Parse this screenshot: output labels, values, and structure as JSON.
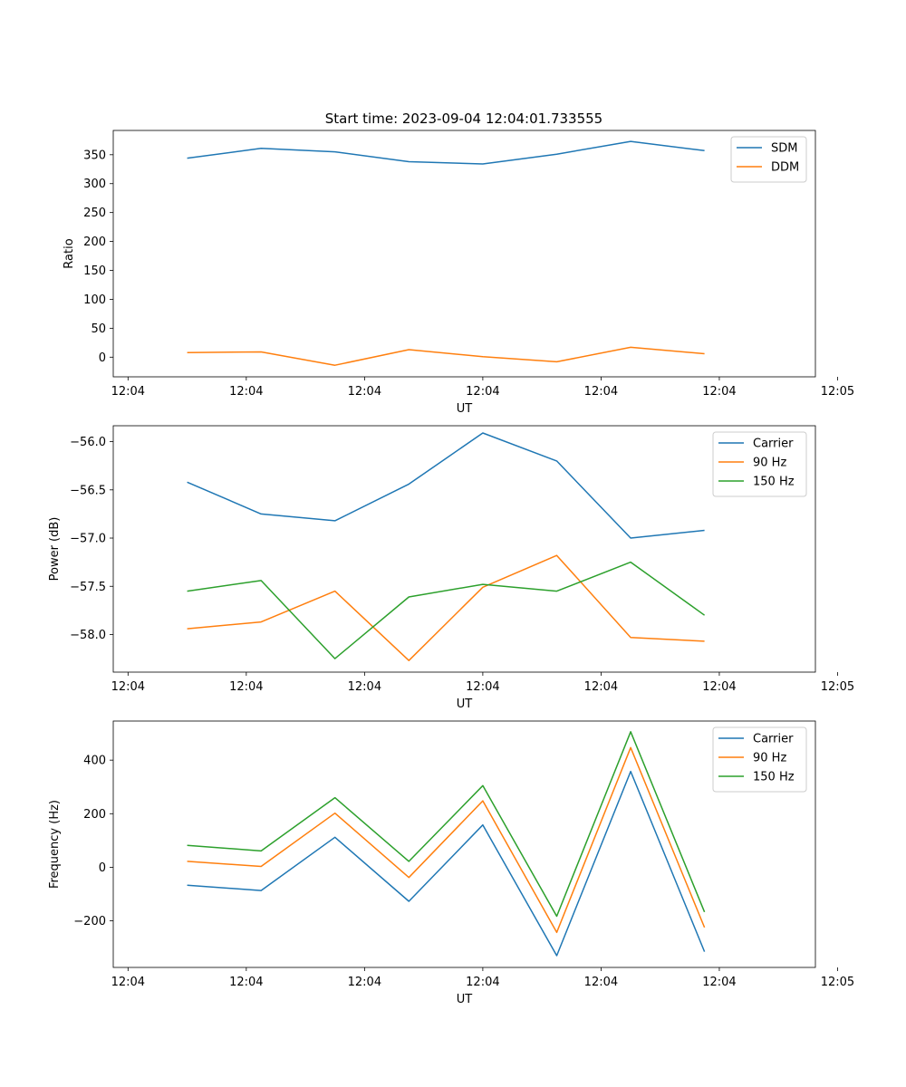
{
  "figure_title": "Start time: 2023-09-04 12:04:01.733555",
  "colors": {
    "blue": "#1f77b4",
    "orange": "#ff7f0e",
    "green": "#2ca02c"
  },
  "chart_data": [
    {
      "type": "line",
      "title": "Start time: 2023-09-04 12:04:01.733555",
      "xlabel": "UT",
      "ylabel": "Ratio",
      "xlim": [
        0,
        9.5
      ],
      "xticks": [
        0.2,
        1.8,
        3.4,
        5.0,
        6.6,
        8.2,
        9.8
      ],
      "xtick_labels": [
        "12:04",
        "12:04",
        "12:04",
        "12:04",
        "12:04",
        "12:04",
        "12:05"
      ],
      "ylim": [
        -34,
        392
      ],
      "yticks": [
        0,
        50,
        100,
        150,
        200,
        250,
        300,
        350
      ],
      "ytick_labels": [
        "0",
        "50",
        "100",
        "150",
        "200",
        "250",
        "300",
        "350"
      ],
      "legend": "top-right",
      "x": [
        1,
        2,
        3,
        4,
        5,
        6,
        7,
        8
      ],
      "series": [
        {
          "name": "SDM",
          "color": "#1f77b4",
          "values": [
            344,
            361,
            355,
            338,
            334,
            351,
            373,
            357
          ]
        },
        {
          "name": "DDM",
          "color": "#ff7f0e",
          "values": [
            8,
            9,
            -14,
            13,
            1,
            -8,
            17,
            6
          ]
        }
      ]
    },
    {
      "type": "line",
      "title": "",
      "xlabel": "UT",
      "ylabel": "Power (dB)",
      "xlim": [
        0,
        9.5
      ],
      "xticks": [
        0.2,
        1.8,
        3.4,
        5.0,
        6.6,
        8.2,
        9.8
      ],
      "xtick_labels": [
        "12:04",
        "12:04",
        "12:04",
        "12:04",
        "12:04",
        "12:04",
        "12:05"
      ],
      "ylim": [
        -58.39,
        -55.835
      ],
      "yticks": [
        -58.0,
        -57.5,
        -57.0,
        -56.5,
        -56.0
      ],
      "ytick_labels": [
        "−58.0",
        "−57.5",
        "−57.0",
        "−56.5",
        "−56.0"
      ],
      "legend": "top-right",
      "x": [
        1,
        2,
        3,
        4,
        5,
        6,
        7,
        8
      ],
      "series": [
        {
          "name": "Carrier",
          "color": "#1f77b4",
          "values": [
            -56.42,
            -56.75,
            -56.82,
            -56.44,
            -55.91,
            -56.2,
            -57.0,
            -56.92
          ]
        },
        {
          "name": "90 Hz",
          "color": "#ff7f0e",
          "values": [
            -57.94,
            -57.87,
            -57.55,
            -58.27,
            -57.51,
            -57.18,
            -58.03,
            -58.07
          ]
        },
        {
          "name": "150 Hz",
          "color": "#2ca02c",
          "values": [
            -57.55,
            -57.44,
            -58.25,
            -57.61,
            -57.48,
            -57.55,
            -57.25,
            -57.8
          ]
        }
      ]
    },
    {
      "type": "line",
      "title": "",
      "xlabel": "UT",
      "ylabel": "Frequency (Hz)",
      "xlim": [
        0,
        9.5
      ],
      "xticks": [
        0.2,
        1.8,
        3.4,
        5.0,
        6.6,
        8.2,
        9.8
      ],
      "xtick_labels": [
        "12:04",
        "12:04",
        "12:04",
        "12:04",
        "12:04",
        "12:04",
        "12:05"
      ],
      "ylim": [
        -374,
        546
      ],
      "yticks": [
        -200,
        0,
        200,
        400
      ],
      "ytick_labels": [
        "−200",
        "0",
        "200",
        "400"
      ],
      "legend": "top-right",
      "x": [
        1,
        2,
        3,
        4,
        5,
        6,
        7,
        8
      ],
      "series": [
        {
          "name": "Carrier",
          "color": "#1f77b4",
          "values": [
            -67,
            -87,
            112,
            -127,
            158,
            -330,
            358,
            -315
          ]
        },
        {
          "name": "90 Hz",
          "color": "#ff7f0e",
          "values": [
            22,
            3,
            202,
            -38,
            248,
            -243,
            447,
            -225
          ]
        },
        {
          "name": "150 Hz",
          "color": "#2ca02c",
          "values": [
            82,
            61,
            260,
            22,
            305,
            -183,
            506,
            -167
          ]
        }
      ]
    }
  ]
}
